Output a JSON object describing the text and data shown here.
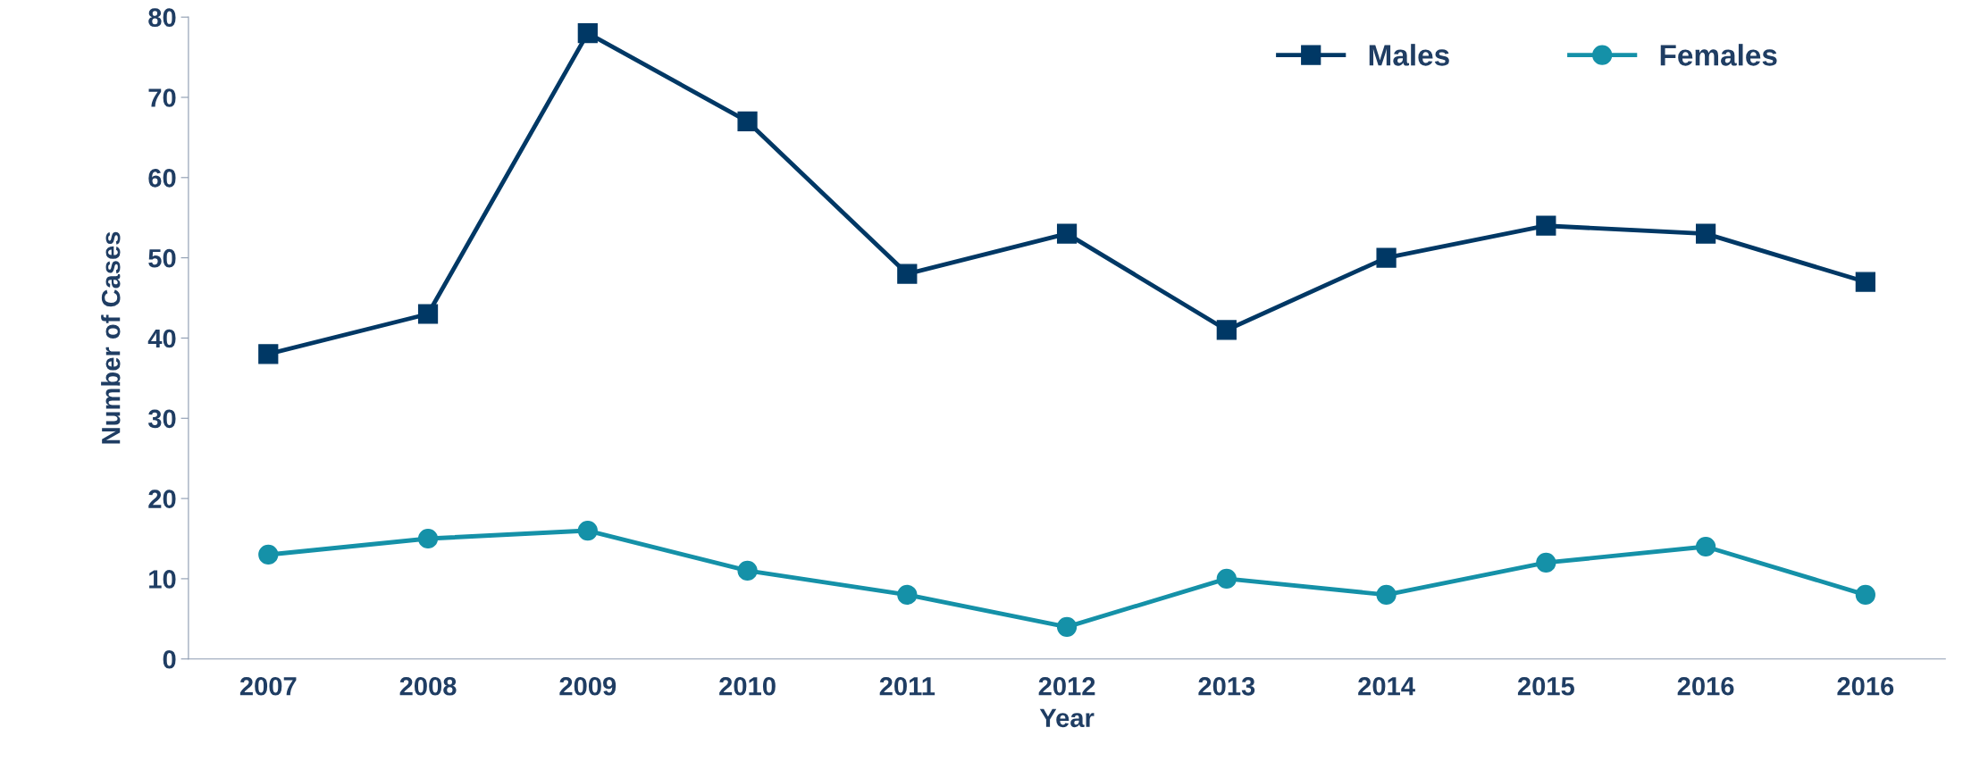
{
  "chart_data": {
    "type": "line",
    "xlabel": "Year",
    "ylabel": "Number of Cases",
    "categories": [
      "2007",
      "2008",
      "2009",
      "2010",
      "2011",
      "2012",
      "2013",
      "2014",
      "2015",
      "2016",
      "2016"
    ],
    "series": [
      {
        "name": "Males",
        "color": "#003865",
        "marker": "square",
        "values": [
          38,
          43,
          78,
          67,
          48,
          53,
          41,
          50,
          54,
          53,
          47
        ]
      },
      {
        "name": "Females",
        "color": "#1591a8",
        "marker": "circle",
        "values": [
          13,
          15,
          16,
          11,
          8,
          4,
          10,
          8,
          12,
          14,
          8
        ]
      }
    ],
    "ylim": [
      0,
      80
    ],
    "yticks": [
      0,
      10,
      20,
      30,
      40,
      50,
      60,
      70,
      80
    ],
    "grid": false,
    "legend": "top right",
    "line_style": "solid"
  }
}
